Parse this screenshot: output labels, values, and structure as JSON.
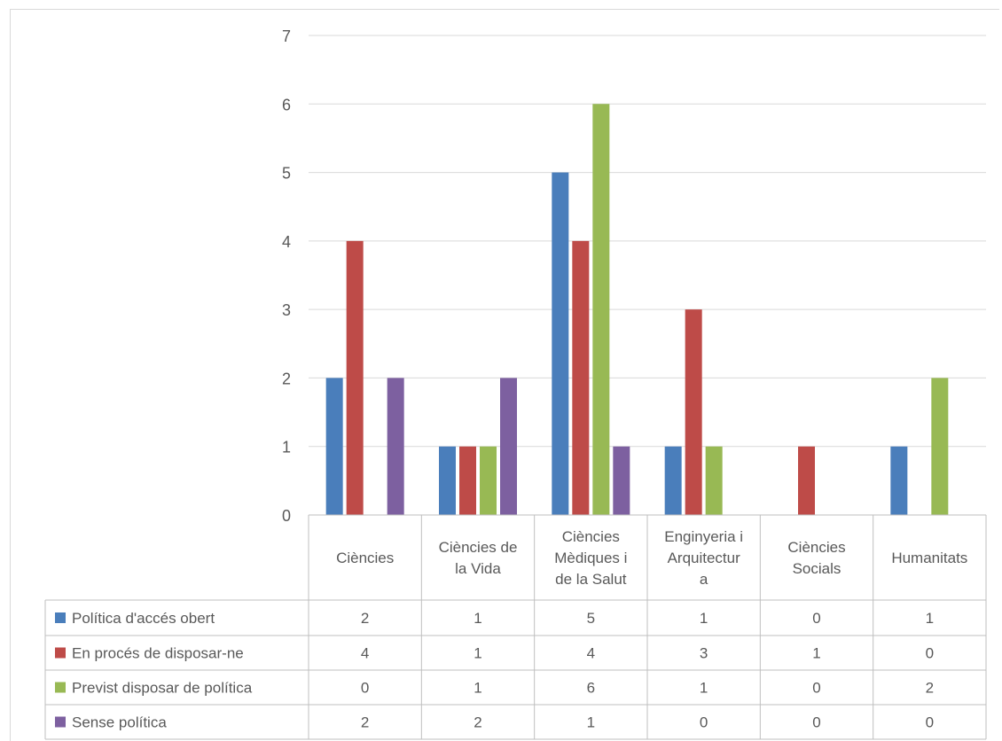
{
  "chart_data": {
    "type": "bar",
    "title": "",
    "xlabel": "",
    "ylabel": "",
    "ylim": [
      0,
      7
    ],
    "yticks": [
      "0",
      "1",
      "2",
      "3",
      "4",
      "5",
      "6",
      "7"
    ],
    "grid": true,
    "legend": "data-table",
    "categories": [
      [
        "Ciències"
      ],
      [
        "Ciències de",
        "la Vida"
      ],
      [
        "Ciències",
        "Mèdiques i",
        "de la Salut"
      ],
      [
        "Enginyeria i",
        "Arquitectur",
        "a"
      ],
      [
        "Ciències",
        "Socials"
      ],
      [
        "Humanitats"
      ]
    ],
    "series": [
      {
        "name": "Política d'accés obert",
        "color": "#4a7ebb",
        "values": [
          2,
          1,
          5,
          1,
          0,
          1
        ]
      },
      {
        "name": "En procés de disposar-ne",
        "color": "#be4b48",
        "values": [
          4,
          1,
          4,
          3,
          1,
          0
        ]
      },
      {
        "name": "Previst disposar de política",
        "color": "#98b954",
        "values": [
          0,
          1,
          6,
          1,
          0,
          2
        ]
      },
      {
        "name": "Sense política",
        "color": "#7d60a0",
        "values": [
          2,
          2,
          1,
          0,
          0,
          0
        ]
      }
    ]
  }
}
